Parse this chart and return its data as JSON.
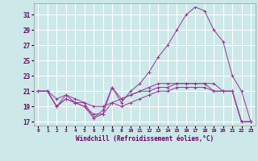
{
  "xlabel": "Windchill (Refroidissement éolien,°C)",
  "bg_color": "#cce8e8",
  "grid_color": "#ffffff",
  "line_color": "#993399",
  "xlim": [
    -0.5,
    23.5
  ],
  "ylim": [
    16.5,
    32.5
  ],
  "yticks": [
    17,
    19,
    21,
    23,
    25,
    27,
    29,
    31
  ],
  "xticks": [
    0,
    1,
    2,
    3,
    4,
    5,
    6,
    7,
    8,
    9,
    10,
    11,
    12,
    13,
    14,
    15,
    16,
    17,
    18,
    19,
    20,
    21,
    22,
    23
  ],
  "lines": [
    {
      "x": [
        0,
        1,
        2,
        3,
        4,
        5,
        6,
        7,
        8,
        9,
        10,
        11,
        12,
        13,
        14,
        15,
        16,
        17,
        18,
        19,
        20,
        21,
        22,
        23
      ],
      "y": [
        21,
        21,
        20,
        20.5,
        20,
        19.5,
        17.5,
        18.5,
        21.5,
        20,
        20.5,
        21,
        21.5,
        22,
        22,
        22,
        22,
        22,
        22,
        21,
        21,
        21,
        17,
        17
      ]
    },
    {
      "x": [
        0,
        1,
        2,
        3,
        4,
        5,
        6,
        7,
        8,
        9,
        10,
        11,
        12,
        13,
        14,
        15,
        16,
        17,
        18,
        19,
        20,
        21,
        22,
        23
      ],
      "y": [
        21,
        21,
        19,
        20,
        19.5,
        19.5,
        19,
        19,
        19.5,
        20,
        20.5,
        21,
        21,
        21.5,
        21.5,
        22,
        22,
        22,
        22,
        22,
        21,
        21,
        17,
        17
      ]
    },
    {
      "x": [
        0,
        1,
        2,
        3,
        4,
        5,
        6,
        7,
        8,
        9,
        10,
        11,
        12,
        13,
        14,
        15,
        16,
        17,
        18,
        19,
        20,
        21,
        22,
        23
      ],
      "y": [
        21,
        21,
        19,
        20,
        19.5,
        19,
        18,
        18,
        19.5,
        19,
        19.5,
        20,
        20.5,
        21,
        21,
        21.5,
        21.5,
        21.5,
        21.5,
        21,
        21,
        21,
        17,
        17
      ]
    },
    {
      "x": [
        0,
        1,
        2,
        3,
        4,
        5,
        6,
        7,
        8,
        9,
        10,
        11,
        12,
        13,
        14,
        15,
        16,
        17,
        18,
        19,
        20,
        21,
        22,
        23
      ],
      "y": [
        21,
        21,
        19,
        20.5,
        19.5,
        19,
        17.5,
        18,
        21.5,
        19.5,
        21,
        22,
        23.5,
        25.5,
        27,
        29,
        31,
        32,
        31.5,
        29,
        27.5,
        23,
        21,
        17
      ]
    }
  ]
}
